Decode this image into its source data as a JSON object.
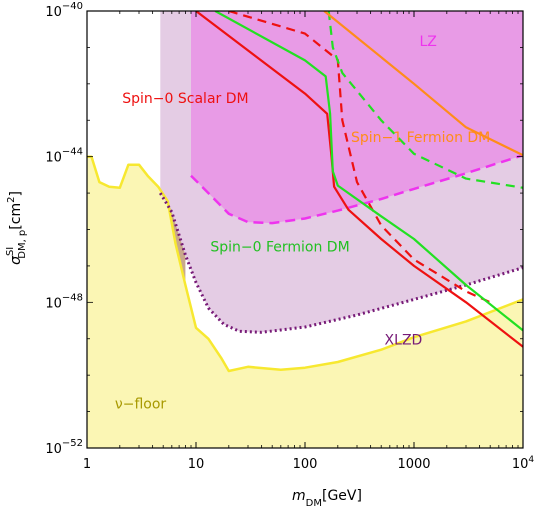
{
  "chart_data": {
    "type": "line",
    "title": "",
    "xlabel": "m_DM[GeV]",
    "ylabel": "σ^SI_DM,p [cm²]",
    "xlog": true,
    "ylog": true,
    "xlim": [
      1,
      10000
    ],
    "ylim": [
      1e-52,
      1e-40
    ],
    "grid": false,
    "x_ticks": [
      {
        "value": 1,
        "label": "1"
      },
      {
        "value": 10,
        "label": "10"
      },
      {
        "value": 100,
        "label": "100"
      },
      {
        "value": 1000,
        "label": "1000"
      },
      {
        "value": 10000,
        "label": "10",
        "sup": "4"
      }
    ],
    "y_ticks": [
      {
        "value": 1e-52,
        "label": "10",
        "sup": "−52"
      },
      {
        "value": 1e-48,
        "label": "10",
        "sup": "−48"
      },
      {
        "value": 1e-44,
        "label": "10",
        "sup": "−44"
      },
      {
        "value": 1e-40,
        "label": "10",
        "sup": "−40"
      }
    ],
    "colors": {
      "neutrino_fill": "#fbf6b4",
      "neutrino_edge": "#f7e830",
      "lz_fill": "#e89be6",
      "xlzd_fill": "#e4cce4",
      "scalar": "#ee1111",
      "fermion0": "#22e022",
      "fermion1": "#ff8c1a",
      "lz_line": "#ee33ee",
      "xlzd_line": "#771a77",
      "brown": "#c9a98b"
    },
    "regions": [
      {
        "name": "v-floor",
        "points": [
          [
            1,
            1e-44
          ],
          [
            1.1,
            1e-44
          ],
          [
            1.3,
            2e-45
          ],
          [
            1.6,
            1.5e-45
          ],
          [
            2.0,
            1.4e-45
          ],
          [
            2.4,
            6e-45
          ],
          [
            3.0,
            6e-45
          ],
          [
            3.6,
            3e-45
          ],
          [
            4.5,
            1.5e-45
          ],
          [
            5.5,
            6e-46
          ],
          [
            6.5,
            4e-47
          ],
          [
            8,
            3e-48
          ],
          [
            10,
            2e-49
          ],
          [
            13,
            1e-49
          ],
          [
            17,
            3e-50
          ],
          [
            20,
            1.3e-50
          ],
          [
            30,
            1.7e-50
          ],
          [
            60,
            1.4e-50
          ],
          [
            100,
            1.6e-50
          ],
          [
            200,
            2.3e-50
          ],
          [
            500,
            5e-50
          ],
          [
            1000,
            1.1e-49
          ],
          [
            3000,
            3e-49
          ],
          [
            10000,
            1.2e-48
          ]
        ]
      },
      {
        "name": "LZ",
        "points": [
          [
            9,
            3e-45
          ],
          [
            14,
            8e-46
          ],
          [
            20,
            2.7e-46
          ],
          [
            30,
            1.6e-46
          ],
          [
            50,
            1.5e-46
          ],
          [
            100,
            2e-46
          ],
          [
            200,
            3.3e-46
          ],
          [
            500,
            6.9e-46
          ],
          [
            1000,
            1.3e-45
          ],
          [
            3000,
            3.5e-45
          ],
          [
            10000,
            1.1e-44
          ]
        ]
      },
      {
        "name": "XLZD",
        "points": [
          [
            4.7,
            1e-45
          ],
          [
            6,
            3e-46
          ],
          [
            8,
            2e-47
          ],
          [
            10,
            3.5e-48
          ],
          [
            13,
            7e-49
          ],
          [
            18,
            2.5e-49
          ],
          [
            25,
            1.6e-49
          ],
          [
            40,
            1.5e-49
          ],
          [
            100,
            2.1e-49
          ],
          [
            300,
            4.5e-49
          ],
          [
            1000,
            1.2e-48
          ],
          [
            3000,
            3e-48
          ],
          [
            10000,
            9e-48
          ]
        ]
      }
    ],
    "series": [
      {
        "name": "Spin-0 Scalar DM",
        "style": "solid",
        "points": [
          [
            10,
            1e-40
          ],
          [
            100,
            5.4e-43
          ],
          [
            160,
            1.5e-43
          ],
          [
            175,
            1e-44
          ],
          [
            185,
            1.5e-45
          ],
          [
            250,
            3.5e-46
          ],
          [
            500,
            5.5e-47
          ],
          [
            1000,
            1e-47
          ],
          [
            3000,
            1e-48
          ],
          [
            10000,
            6e-50
          ]
        ]
      },
      {
        "name": "Spin-0 Scalar DM (dashed)",
        "style": "dashed",
        "points": [
          [
            20,
            1e-40
          ],
          [
            100,
            2.4e-41
          ],
          [
            200,
            4.5e-42
          ],
          [
            220,
            1e-43
          ],
          [
            300,
            2e-45
          ],
          [
            500,
            1.3e-46
          ],
          [
            1000,
            1.5e-47
          ],
          [
            3000,
            2e-48
          ],
          [
            5000,
            1e-48
          ]
        ]
      },
      {
        "name": "Spin-0 Fermion DM",
        "style": "solid",
        "points": [
          [
            15,
            1e-40
          ],
          [
            100,
            4.4e-42
          ],
          [
            155,
            1.6e-42
          ],
          [
            170,
            1.5e-43
          ],
          [
            180,
            4e-45
          ],
          [
            200,
            1.6e-45
          ],
          [
            500,
            2.3e-46
          ],
          [
            1000,
            5.5e-47
          ],
          [
            3000,
            3e-48
          ],
          [
            10000,
            1.7e-49
          ]
        ]
      },
      {
        "name": "Spin-0 Fermion DM (dashed)",
        "style": "dashed",
        "points": [
          [
            165,
            1e-40
          ],
          [
            180,
            1e-41
          ],
          [
            220,
            2e-42
          ],
          [
            500,
            1e-43
          ],
          [
            1000,
            1.2e-44
          ],
          [
            3000,
            2.5e-45
          ],
          [
            10000,
            1.4e-45
          ]
        ]
      },
      {
        "name": "Spin-1 Fermion DM",
        "style": "solid",
        "points": [
          [
            150,
            1e-40
          ],
          [
            500,
            5.4e-42
          ],
          [
            1000,
            1e-42
          ],
          [
            3000,
            6.4e-44
          ],
          [
            10000,
            1.1e-44
          ]
        ]
      }
    ],
    "annotations": [
      {
        "text": "LZ",
        "x": 1350,
        "y": 1.1e-41,
        "color": "#ee33ee"
      },
      {
        "text": "Spin−0 Scalar DM",
        "x": 8,
        "y": 3e-43,
        "color": "#ee1111"
      },
      {
        "text": "Spin−1 Fermion DM",
        "x": 1150,
        "y": 2.5e-44,
        "color": "#ff8c1a"
      },
      {
        "text": "Spin−0 Fermion DM",
        "x": 59,
        "y": 2.5e-47,
        "color": "#22c022"
      },
      {
        "text": "XLZD",
        "x": 800,
        "y": 7e-50,
        "color": "#771a77"
      },
      {
        "text": "ν−floor",
        "x": 3.1,
        "y": 1.2e-51,
        "color": "#a89900"
      }
    ]
  }
}
